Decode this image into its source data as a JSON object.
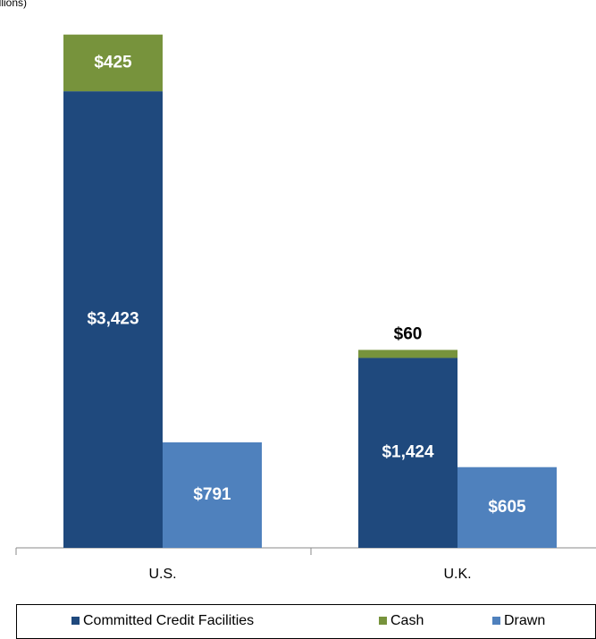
{
  "chart_data": {
    "type": "bar",
    "subtitle": "illions)",
    "categories": [
      "U.S.",
      "U.K."
    ],
    "series": [
      {
        "name": "Committed Credit Facilities",
        "color": "#1f497d",
        "group": 0,
        "values": [
          3423,
          1424
        ],
        "value_labels": [
          "$3,423",
          "$1,424"
        ]
      },
      {
        "name": "Cash",
        "color": "#77933c",
        "group": 0,
        "values": [
          425,
          60
        ],
        "value_labels": [
          "$425",
          "$60"
        ]
      },
      {
        "name": "Drawn",
        "color": "#4f81bd",
        "group": 1,
        "values": [
          791,
          605
        ],
        "value_labels": [
          "$791",
          "$605"
        ]
      }
    ],
    "ylim": [
      0,
      4000
    ],
    "grid": false,
    "legend": "bottom"
  }
}
